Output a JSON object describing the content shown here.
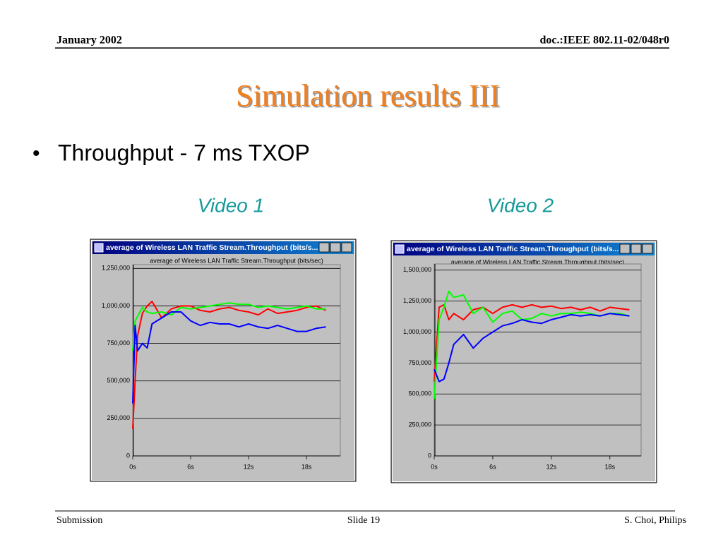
{
  "header": {
    "date": "January 2002",
    "doc": "doc.:IEEE 802.11-02/048r0"
  },
  "slide": {
    "title": "Simulation results III",
    "bullet": "Throughput - 7 ms TXOP"
  },
  "footer": {
    "left": "Submission",
    "center": "Slide 19",
    "right": "S. Choi, Philips"
  },
  "chart_data": [
    {
      "type": "line",
      "title": "Video 1",
      "window_title": "average of Wireless LAN Traffic Stream.Throughput (bits/s...",
      "subtitle": "average of Wireless LAN Traffic Stream.Throughput (bits/sec)",
      "x": [
        0,
        0.25,
        0.5,
        1,
        1.5,
        2,
        3,
        4,
        5,
        6,
        7,
        8,
        9,
        10,
        11,
        12,
        13,
        14,
        15,
        16,
        17,
        18,
        19,
        20
      ],
      "series": [
        {
          "color": "#ff0000",
          "values": [
            180000,
            500000,
            800000,
            950000,
            1000000,
            1030000,
            920000,
            980000,
            1000000,
            1000000,
            970000,
            960000,
            980000,
            990000,
            970000,
            960000,
            940000,
            980000,
            950000,
            960000,
            970000,
            990000,
            1000000,
            970000
          ]
        },
        {
          "color": "#00ff00",
          "values": [
            700000,
            900000,
            930000,
            990000,
            960000,
            950000,
            960000,
            940000,
            990000,
            980000,
            990000,
            1000000,
            1010000,
            1020000,
            1010000,
            1010000,
            990000,
            1000000,
            990000,
            980000,
            990000,
            1000000,
            980000,
            980000
          ]
        },
        {
          "color": "#0000ff",
          "values": [
            350000,
            870000,
            700000,
            750000,
            720000,
            880000,
            920000,
            960000,
            960000,
            900000,
            870000,
            890000,
            880000,
            880000,
            860000,
            880000,
            860000,
            850000,
            870000,
            850000,
            830000,
            830000,
            850000,
            860000
          ]
        }
      ],
      "xlim": [
        0,
        21.5
      ],
      "xticks": [
        {
          "value": 0,
          "label": "0s"
        },
        {
          "value": 6,
          "label": "6s"
        },
        {
          "value": 12,
          "label": "12s"
        },
        {
          "value": 18,
          "label": "18s"
        }
      ],
      "ylim": [
        0,
        1275000
      ],
      "yticks": [
        0,
        {
          "value": 250000,
          "label": "250,000"
        },
        {
          "value": 500000,
          "label": "500,000"
        },
        {
          "value": 750000,
          "label": "750,000"
        },
        {
          "value": 1000000,
          "label": "1,000,000"
        },
        {
          "value": 1250000,
          "label": "1,250,000"
        }
      ],
      "grid": true
    },
    {
      "type": "line",
      "title": "Video 2",
      "window_title": "average of Wireless LAN Traffic Stream.Throughput (bits/s...",
      "subtitle": "average of Wireless LAN Traffic Stream.Throughput (bits/sec)",
      "x": [
        0,
        0.5,
        1,
        1.5,
        2,
        3,
        4,
        5,
        6,
        7,
        8,
        9,
        10,
        11,
        12,
        13,
        14,
        15,
        16,
        17,
        18,
        19,
        20
      ],
      "series": [
        {
          "color": "#ff0000",
          "values": [
            600000,
            1200000,
            1220000,
            1100000,
            1150000,
            1100000,
            1180000,
            1200000,
            1150000,
            1200000,
            1220000,
            1200000,
            1220000,
            1200000,
            1210000,
            1190000,
            1200000,
            1180000,
            1200000,
            1170000,
            1200000,
            1190000,
            1180000
          ]
        },
        {
          "color": "#00ff00",
          "values": [
            460000,
            1100000,
            1200000,
            1330000,
            1280000,
            1300000,
            1150000,
            1200000,
            1080000,
            1150000,
            1170000,
            1100000,
            1110000,
            1150000,
            1130000,
            1150000,
            1150000,
            1160000,
            1150000,
            1130000,
            1150000,
            1150000,
            1130000
          ]
        },
        {
          "color": "#0000ff",
          "values": [
            700000,
            600000,
            620000,
            750000,
            900000,
            980000,
            870000,
            950000,
            1000000,
            1050000,
            1070000,
            1100000,
            1080000,
            1070000,
            1100000,
            1120000,
            1140000,
            1130000,
            1140000,
            1130000,
            1150000,
            1140000,
            1130000
          ]
        }
      ],
      "xlim": [
        0,
        21.2
      ],
      "xticks": [
        {
          "value": 0,
          "label": "0s"
        },
        {
          "value": 6,
          "label": "6s"
        },
        {
          "value": 12,
          "label": "12s"
        },
        {
          "value": 18,
          "label": "18s"
        }
      ],
      "ylim": [
        0,
        1550000
      ],
      "yticks": [
        0,
        {
          "value": 250000,
          "label": "250,000"
        },
        {
          "value": 500000,
          "label": "500,000"
        },
        {
          "value": 750000,
          "label": "750,000"
        },
        {
          "value": 1000000,
          "label": "1,000,000"
        },
        {
          "value": 1250000,
          "label": "1,250,000"
        },
        {
          "value": 1500000,
          "label": "1,500,000"
        }
      ],
      "grid": true
    }
  ]
}
